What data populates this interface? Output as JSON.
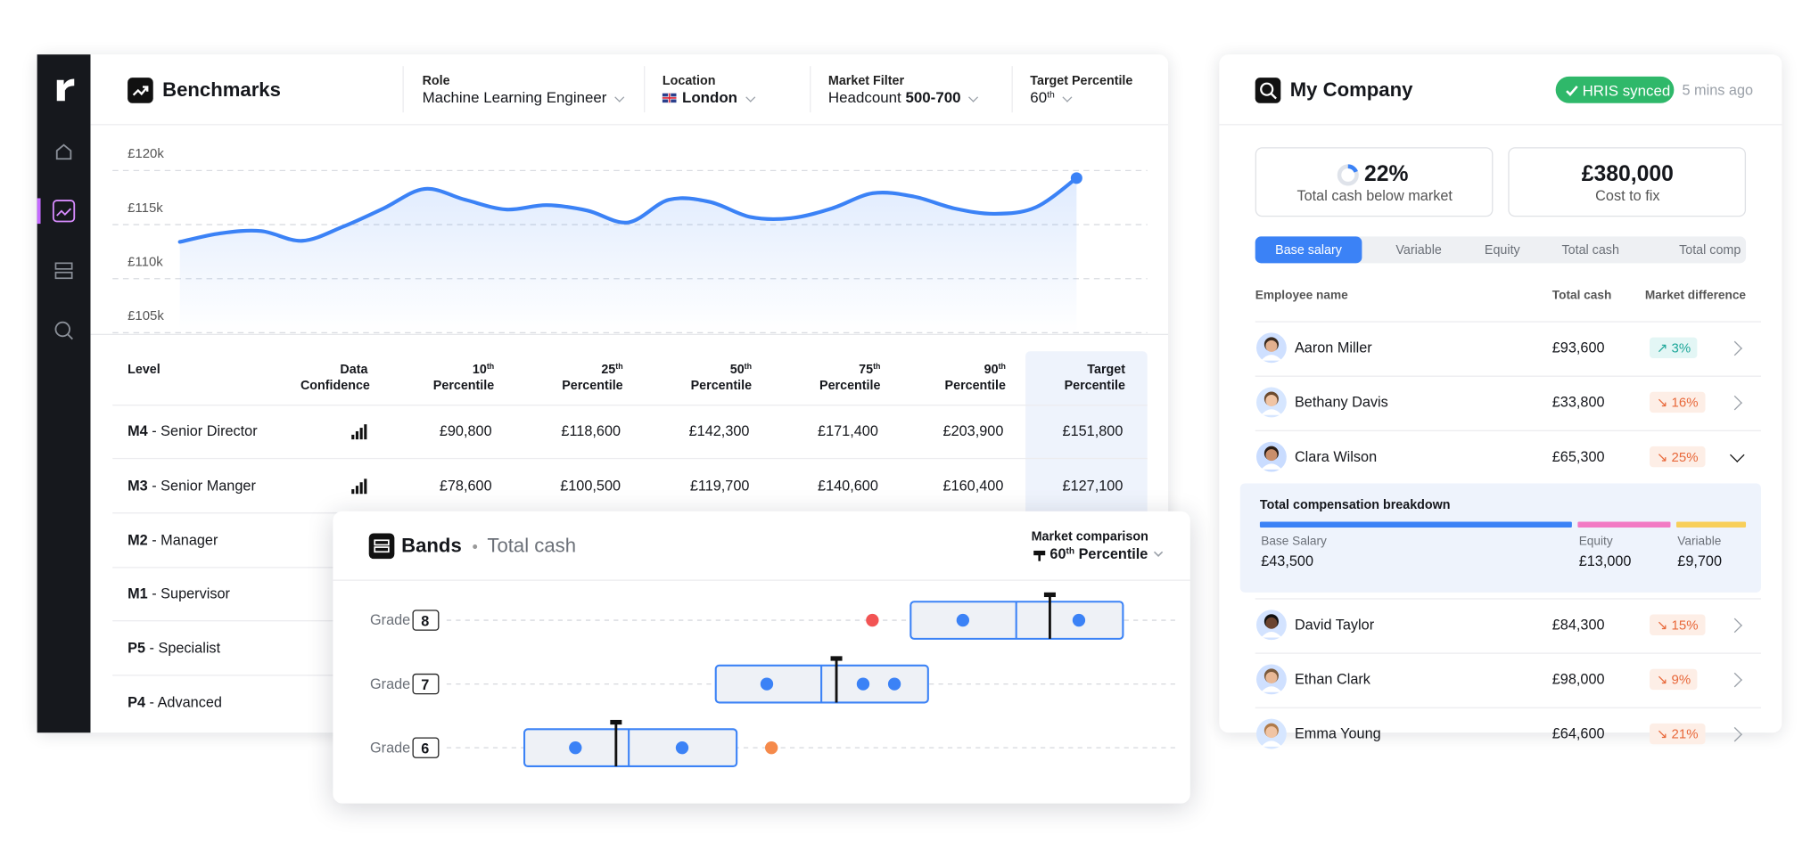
{
  "benchmarks": {
    "title": "Benchmarks",
    "filters": [
      {
        "label": "Role",
        "value": "Machine Learning Engineer"
      },
      {
        "label": "Location",
        "value": "London"
      },
      {
        "label": "Market Filter",
        "prefix": "Headcount",
        "value": "500-700"
      },
      {
        "label": "Target Percentile",
        "value": "60",
        "suffix": "th"
      }
    ],
    "columns": [
      {
        "text": "Level"
      },
      {
        "text": "Data Confidence"
      },
      {
        "ordinal": "10",
        "suffix": "th",
        "text": "Percentile"
      },
      {
        "ordinal": "25",
        "suffix": "th",
        "text": "Percentile"
      },
      {
        "ordinal": "50",
        "suffix": "th",
        "text": "Percentile"
      },
      {
        "ordinal": "75",
        "suffix": "th",
        "text": "Percentile"
      },
      {
        "ordinal": "90",
        "suffix": "th",
        "text": "Percentile"
      },
      {
        "text": "Target Percentile"
      }
    ],
    "rows": [
      {
        "code": "M4",
        "title": "- Senior Director",
        "values": [
          "£90,800",
          "£118,600",
          "£142,300",
          "£171,400",
          "£203,900",
          "£151,800"
        ]
      },
      {
        "code": "M3",
        "title": "- Senior Manger",
        "values": [
          "£78,600",
          "£100,500",
          "£119,700",
          "£140,600",
          "£160,400",
          "£127,100"
        ]
      },
      {
        "code": "M2",
        "title": "- Manager"
      },
      {
        "code": "M1",
        "title": "- Supervisor"
      },
      {
        "code": "P5",
        "title": "- Specialist"
      },
      {
        "code": "P4",
        "title": "- Advanced"
      }
    ]
  },
  "chart_data": {
    "type": "area",
    "color": "#3b82f6",
    "categories": [
      null,
      null,
      null,
      null,
      null,
      null,
      null,
      null,
      null,
      null,
      null,
      null,
      null,
      null,
      null,
      null,
      null,
      null,
      null,
      null,
      null,
      null,
      null
    ],
    "values": [
      113.4,
      114.2,
      114.4,
      113.5,
      114.8,
      116.5,
      118.3,
      117.3,
      116.4,
      116.8,
      116.3,
      115.2,
      117.3,
      117.1,
      115.7,
      115.6,
      116.5,
      117.9,
      117.6,
      116.5,
      116.0,
      116.6,
      119.3
    ],
    "ylim": [
      105,
      124.3
    ],
    "yticks": [
      {
        "value": 105,
        "label": "£105k"
      },
      {
        "value": 110,
        "label": "£110k"
      },
      {
        "value": 115,
        "label": "£115k"
      },
      {
        "value": 120,
        "label": "£120k"
      }
    ],
    "grid": true
  },
  "bands": {
    "title": "Bands",
    "separator": "•",
    "subtitle": "Total cash",
    "comparison_label": "Market comparison",
    "comparison": {
      "ordinal": "60",
      "suffix": "th",
      "text": "Percentile"
    },
    "grades": [
      {
        "label": "Grade",
        "number": "8"
      },
      {
        "label": "Grade",
        "number": "7"
      },
      {
        "label": "Grade",
        "number": "6"
      }
    ]
  },
  "company": {
    "title": "My Company",
    "sync_status": "HRIS synced",
    "sync_time": "5 mins ago",
    "stats": [
      {
        "value": "22%",
        "label": "Total cash below market"
      },
      {
        "value": "£380,000",
        "label": "Cost to fix"
      }
    ],
    "tabs": [
      "Base salary",
      "Variable",
      "Equity",
      "Total cash",
      "Total comp"
    ],
    "active_tab": 0,
    "columns": [
      "Employee name",
      "Total cash",
      "Market difference"
    ],
    "employees": [
      {
        "name": "Aaron Miller",
        "total_cash": "£93,600",
        "difference": "↗ 3%",
        "trend": "up"
      },
      {
        "name": "Bethany Davis",
        "total_cash": "£33,800",
        "difference": "↘ 16%",
        "trend": "down"
      },
      {
        "name": "Clara Wilson",
        "total_cash": "£65,300",
        "difference": "↘ 25%",
        "trend": "down"
      },
      {
        "name": "David Taylor",
        "total_cash": "£84,300",
        "difference": "↘ 15%",
        "trend": "down"
      },
      {
        "name": "Ethan Clark",
        "total_cash": "£98,000",
        "difference": "↘ 9%",
        "trend": "down"
      },
      {
        "name": "Emma Young",
        "total_cash": "£64,600",
        "difference": "↘ 21%",
        "trend": "down"
      }
    ],
    "expanded_index": 2,
    "breakdown": {
      "title": "Total compensation breakdown",
      "items": [
        {
          "label": "Base Salary",
          "value": "£43,500",
          "color": "#3b82f6"
        },
        {
          "label": "Equity",
          "value": "£13,000",
          "color": "#f27ac4"
        },
        {
          "label": "Variable",
          "value": "£9,700",
          "color": "#f8cf5a"
        }
      ]
    }
  }
}
